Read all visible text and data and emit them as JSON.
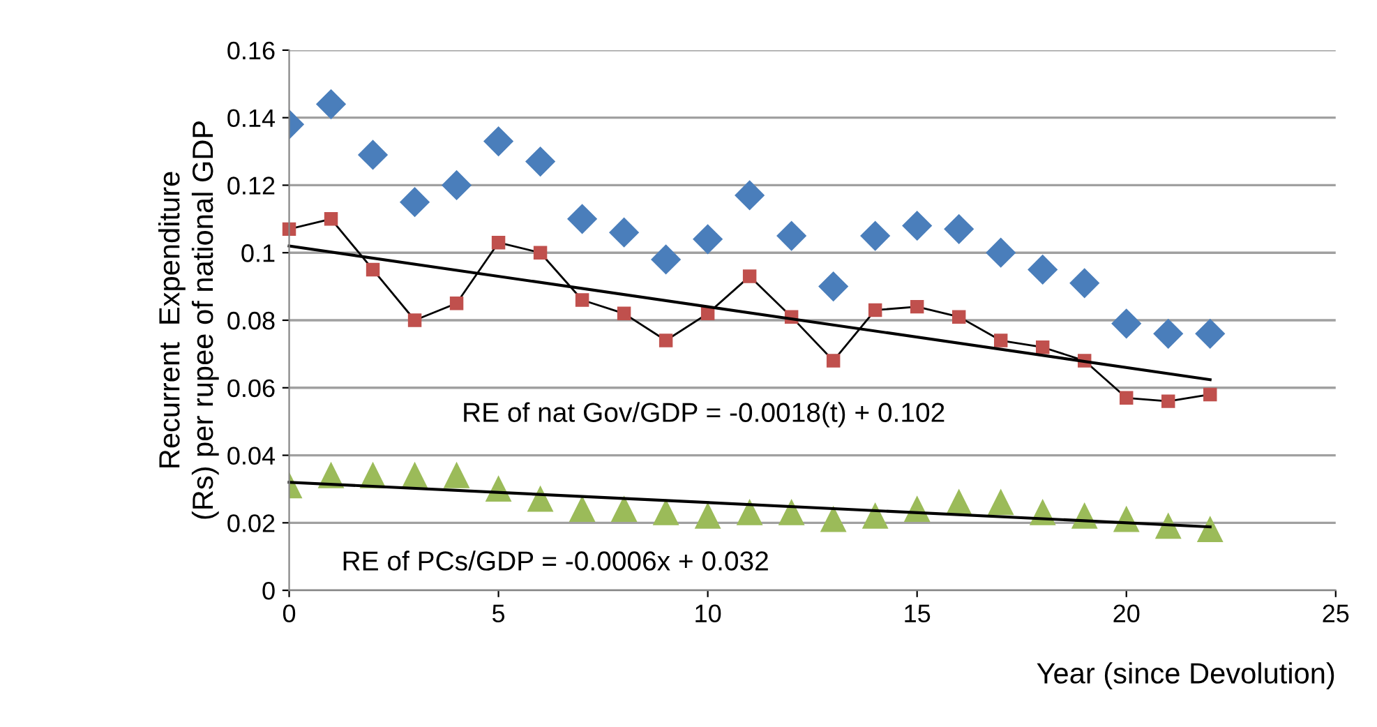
{
  "chart_data": {
    "type": "scatter",
    "ylabel": "Recurrent  Expenditure\n(Rs) per rupee of national GDP",
    "xlabel": "Year (since Devolution)",
    "x": [
      0,
      1,
      2,
      3,
      4,
      5,
      6,
      7,
      8,
      9,
      10,
      11,
      12,
      13,
      14,
      15,
      16,
      17,
      18,
      19,
      20,
      21,
      22
    ],
    "series": [
      {
        "marker": "diamond",
        "color": "#4a7ebb",
        "values": [
          0.138,
          0.144,
          0.129,
          0.115,
          0.12,
          0.133,
          0.127,
          0.11,
          0.106,
          0.098,
          0.104,
          0.117,
          0.105,
          0.09,
          0.105,
          0.108,
          0.107,
          0.1,
          0.095,
          0.091,
          0.079,
          0.076,
          0.076
        ]
      },
      {
        "type": "line",
        "marker": "square",
        "color": "#c0504d",
        "values": [
          0.107,
          0.11,
          0.095,
          0.08,
          0.085,
          0.103,
          0.1,
          0.086,
          0.082,
          0.074,
          0.082,
          0.093,
          0.081,
          0.068,
          0.083,
          0.084,
          0.081,
          0.074,
          0.072,
          0.068,
          0.057,
          0.056,
          0.058
        ]
      },
      {
        "marker": "triangle",
        "color": "#9bbb59",
        "values": [
          0.031,
          0.034,
          0.034,
          0.034,
          0.034,
          0.03,
          0.027,
          0.024,
          0.024,
          0.023,
          0.022,
          0.023,
          0.023,
          0.021,
          0.022,
          0.024,
          0.026,
          0.026,
          0.023,
          0.022,
          0.021,
          0.019,
          0.018
        ]
      },
      {
        "type": "line",
        "marker": "none",
        "color": "#000000",
        "values": [
          0.102,
          null,
          null,
          null,
          null,
          null,
          null,
          null,
          null,
          null,
          null,
          null,
          null,
          null,
          null,
          null,
          null,
          null,
          null,
          null,
          null,
          null,
          0.0624
        ]
      },
      {
        "type": "line",
        "marker": "none",
        "color": "#000000",
        "values": [
          0.032,
          null,
          null,
          null,
          null,
          null,
          null,
          null,
          null,
          null,
          null,
          null,
          null,
          null,
          null,
          null,
          null,
          null,
          null,
          null,
          null,
          null,
          0.0188
        ]
      }
    ],
    "annotations": [
      "RE of nat Gov/GDP = -0.0018(t) + 0.102",
      "RE of PCs/GDP = -0.0006x + 0.032"
    ],
    "xlim": [
      0,
      25
    ],
    "xticks": [
      0,
      5,
      10,
      15,
      20,
      25
    ],
    "ylim": [
      0,
      0.16
    ],
    "yticks": [
      0,
      0.02,
      0.04,
      0.06,
      0.08,
      0.1,
      0.12,
      0.14,
      0.16
    ],
    "grid": "y",
    "legend": false
  }
}
